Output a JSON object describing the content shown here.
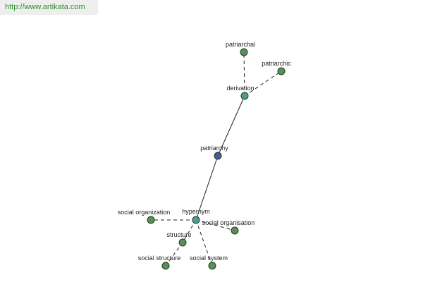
{
  "watermark": {
    "url": "http://www.artikata.com"
  },
  "colors": {
    "leaf": "#5a8f5a",
    "relation": "#4e9a9a",
    "center": "#4a5a9a",
    "url_text": "#2e8b2e"
  },
  "graph": {
    "center": "patriarchy",
    "nodes": [
      {
        "id": "patriarchal",
        "label": "patriarchal",
        "kind": "leaf"
      },
      {
        "id": "patriarchic",
        "label": "patriarchic",
        "kind": "leaf"
      },
      {
        "id": "derivation",
        "label": "derivation",
        "kind": "relation"
      },
      {
        "id": "patriarchy",
        "label": "patriarchy",
        "kind": "center"
      },
      {
        "id": "hypernym",
        "label": "hypernym",
        "kind": "relation"
      },
      {
        "id": "social-organization",
        "label": "social organization",
        "kind": "leaf"
      },
      {
        "id": "social-organisation",
        "label": "social organisation",
        "kind": "leaf"
      },
      {
        "id": "structure",
        "label": "structure",
        "kind": "leaf"
      },
      {
        "id": "social-structure",
        "label": "social structure",
        "kind": "leaf"
      },
      {
        "id": "social-system",
        "label": "social system",
        "kind": "leaf"
      }
    ],
    "edges": [
      {
        "from": "patriarchy",
        "to": "derivation",
        "style": "solid"
      },
      {
        "from": "patriarchy",
        "to": "hypernym",
        "style": "solid"
      },
      {
        "from": "derivation",
        "to": "patriarchal",
        "style": "dashed"
      },
      {
        "from": "derivation",
        "to": "patriarchic",
        "style": "dashed"
      },
      {
        "from": "hypernym",
        "to": "social-organization",
        "style": "dashed"
      },
      {
        "from": "hypernym",
        "to": "social-organisation",
        "style": "dashed"
      },
      {
        "from": "hypernym",
        "to": "structure",
        "style": "dashed"
      },
      {
        "from": "hypernym",
        "to": "social-system",
        "style": "dashed"
      },
      {
        "from": "structure",
        "to": "social-structure",
        "style": "dashed"
      }
    ]
  }
}
